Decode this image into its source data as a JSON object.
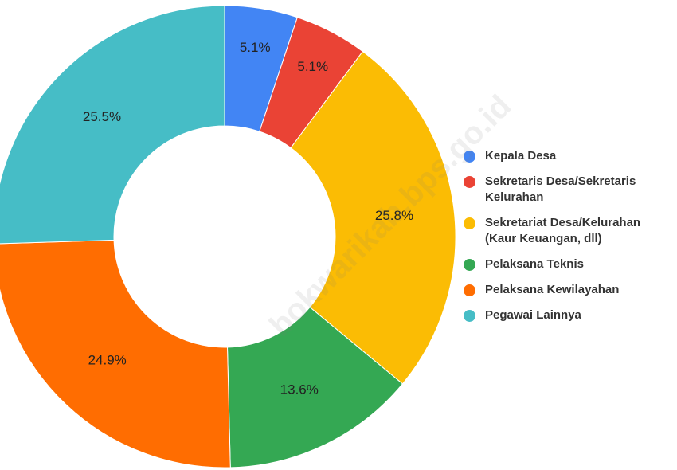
{
  "chart_data": {
    "type": "donut",
    "categories": [
      "Kepala Desa",
      "Sekretaris Desa/Sekretaris Kelurahan",
      "Sekretariat Desa/Kelurahan (Kaur Keuangan, dll)",
      "Pelaksana Teknis",
      "Pelaksana Kewilayahan",
      "Pegawai Lainnya"
    ],
    "values": [
      5.1,
      5.1,
      25.8,
      13.6,
      24.9,
      25.5
    ],
    "value_labels": [
      "5.1%",
      "5.1%",
      "25.8%",
      "13.6%",
      "24.9%",
      "25.5%"
    ],
    "colors": [
      "#4285f4",
      "#ea4335",
      "#fbbc04",
      "#34a853",
      "#ff6d01",
      "#46bdc6"
    ],
    "legend": "right",
    "watermark": "bokwarikab.bps.go.id"
  }
}
